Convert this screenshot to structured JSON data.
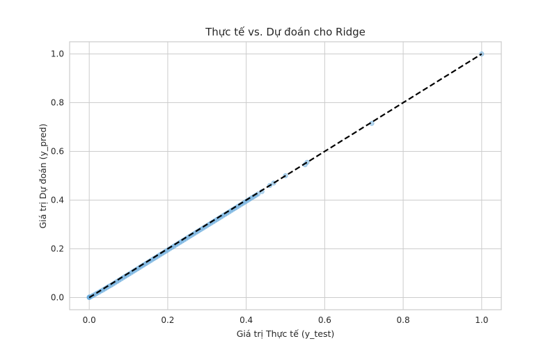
{
  "chart_data": {
    "type": "scatter",
    "title": "Thực tế vs. Dự đoán cho Ridge",
    "xlabel": "Giá trị Thực tế (y_test)",
    "ylabel": "Giá trị Dự đoán (y_pred)",
    "xlim": [
      -0.05,
      1.05
    ],
    "ylim": [
      -0.05,
      1.05
    ],
    "xticks": [
      "0.0",
      "0.2",
      "0.4",
      "0.6",
      "0.8",
      "1.0"
    ],
    "yticks": [
      "0.0",
      "0.2",
      "0.4",
      "0.6",
      "0.8",
      "1.0"
    ],
    "grid": true,
    "point_color": "#5da5da",
    "line_color": "#000000",
    "reference_line": {
      "style": "dashed",
      "from": [
        0,
        0
      ],
      "to": [
        1,
        1
      ]
    },
    "points": {
      "x": [
        0.0,
        0.0,
        0.0,
        0.005,
        0.01,
        0.015,
        0.02,
        0.025,
        0.03,
        0.035,
        0.04,
        0.045,
        0.05,
        0.055,
        0.06,
        0.065,
        0.07,
        0.075,
        0.08,
        0.085,
        0.09,
        0.095,
        0.1,
        0.105,
        0.11,
        0.115,
        0.12,
        0.125,
        0.13,
        0.135,
        0.14,
        0.145,
        0.15,
        0.155,
        0.16,
        0.165,
        0.17,
        0.175,
        0.18,
        0.185,
        0.19,
        0.195,
        0.2,
        0.205,
        0.21,
        0.215,
        0.22,
        0.225,
        0.23,
        0.235,
        0.24,
        0.245,
        0.25,
        0.255,
        0.26,
        0.265,
        0.27,
        0.275,
        0.28,
        0.285,
        0.29,
        0.295,
        0.3,
        0.305,
        0.31,
        0.315,
        0.32,
        0.325,
        0.33,
        0.335,
        0.34,
        0.345,
        0.35,
        0.355,
        0.36,
        0.365,
        0.37,
        0.375,
        0.38,
        0.385,
        0.39,
        0.395,
        0.4,
        0.405,
        0.41,
        0.415,
        0.42,
        0.425,
        0.43,
        0.44,
        0.46,
        0.47,
        0.5,
        0.55,
        0.555,
        0.72,
        1.0
      ],
      "y": [
        0.0,
        0.002,
        0.001,
        0.004,
        0.009,
        0.013,
        0.018,
        0.022,
        0.027,
        0.031,
        0.036,
        0.041,
        0.046,
        0.05,
        0.055,
        0.06,
        0.065,
        0.07,
        0.075,
        0.08,
        0.085,
        0.09,
        0.095,
        0.1,
        0.105,
        0.11,
        0.115,
        0.12,
        0.125,
        0.13,
        0.135,
        0.14,
        0.145,
        0.15,
        0.155,
        0.16,
        0.165,
        0.17,
        0.175,
        0.18,
        0.185,
        0.19,
        0.195,
        0.2,
        0.205,
        0.21,
        0.215,
        0.22,
        0.225,
        0.23,
        0.235,
        0.24,
        0.245,
        0.25,
        0.255,
        0.26,
        0.265,
        0.27,
        0.275,
        0.28,
        0.285,
        0.29,
        0.295,
        0.3,
        0.305,
        0.31,
        0.315,
        0.32,
        0.325,
        0.33,
        0.335,
        0.34,
        0.345,
        0.35,
        0.355,
        0.36,
        0.365,
        0.37,
        0.375,
        0.38,
        0.385,
        0.39,
        0.395,
        0.4,
        0.405,
        0.41,
        0.415,
        0.42,
        0.425,
        0.435,
        0.46,
        0.47,
        0.5,
        0.545,
        0.555,
        0.715,
        1.0
      ]
    }
  }
}
